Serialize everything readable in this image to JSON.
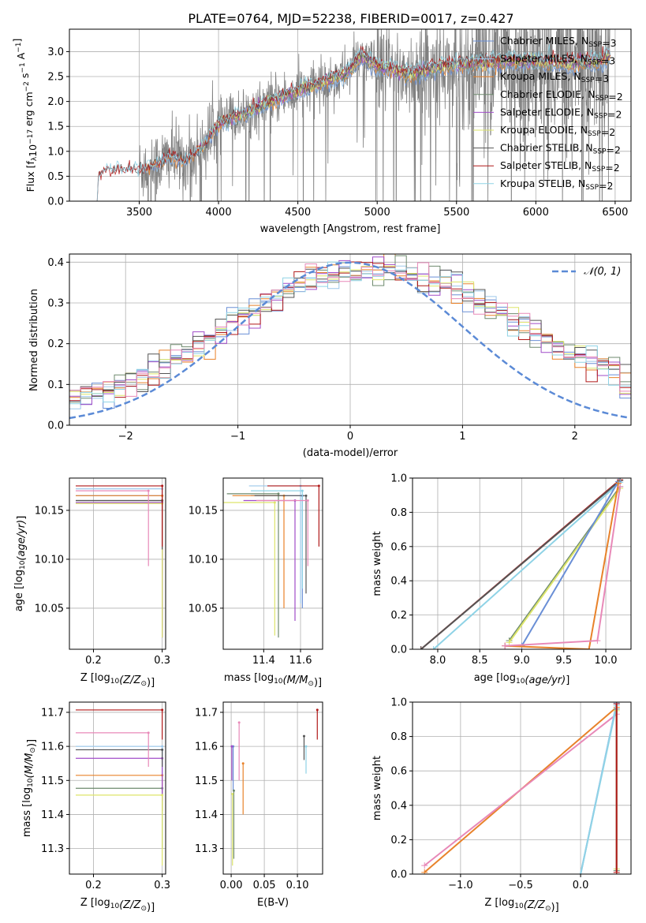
{
  "figure_title": "PLATE=0764, MJD=52238, FIBERID=0017, z=0.427",
  "colors": {
    "Chabrier MILES": "#6a8fd6",
    "Salpeter MILES": "#9ec8ea",
    "Kroupa MILES": "#e8822a",
    "Chabrier ELODIE": "#6e8a6e",
    "Salpeter ELODIE": "#a04cc8",
    "Kroupa ELODIE": "#dde56a",
    "Chabrier STELIB": "#555555",
    "Salpeter STELIB": "#b01818",
    "Kroupa STELIB": "#8fd3e6",
    "pink": "#e889b8",
    "data": "#808080",
    "gauss": "#5b8ad6"
  },
  "chart_data": [
    {
      "id": "spectrum",
      "type": "line",
      "xlabel": "wavelength [Angstrom, rest frame]",
      "ylabel": "Flux [f",
      "ylabel_sub": "λ",
      "ylabel_rest": "10",
      "ylabel_exp1": "−17",
      "ylabel_mid": " erg cm",
      "ylabel_exp2": "−2",
      "ylabel_s": " s",
      "ylabel_exp3": "−1",
      "ylabel_A": " A",
      "ylabel_exp4": "−1",
      "ylabel_end": "]",
      "xlim": [
        3060,
        6600
      ],
      "ylim": [
        0,
        3.45
      ],
      "xticks": [
        3500,
        4000,
        4500,
        5000,
        5500,
        6000,
        6500
      ],
      "yticks": [
        "0.0",
        "0.5",
        "1.0",
        "1.5",
        "2.0",
        "2.5",
        "3.0"
      ],
      "legend_placement": "right",
      "legend": [
        {
          "pre": "Chabrier MILES, N",
          "sub": "SSP",
          "post": "=3",
          "color": "#6a8fd6"
        },
        {
          "pre": "Salpeter MILES, N",
          "sub": "SSP",
          "post": "=3",
          "color": "#9ec8ea"
        },
        {
          "pre": "Kroupa MILES, N",
          "sub": "SSP",
          "post": "=3",
          "color": "#e8822a"
        },
        {
          "pre": "Chabrier ELODIE, N",
          "sub": "SSP",
          "post": "=2",
          "color": "#6e8a6e"
        },
        {
          "pre": "Salpeter ELODIE, N",
          "sub": "SSP",
          "post": "=2",
          "color": "#a04cc8"
        },
        {
          "pre": "Kroupa ELODIE, N",
          "sub": "SSP",
          "post": "=2",
          "color": "#dde56a"
        },
        {
          "pre": "Chabrier STELIB, N",
          "sub": "SSP",
          "post": "=2",
          "color": "#555555"
        },
        {
          "pre": "Salpeter STELIB, N",
          "sub": "SSP",
          "post": "=2",
          "color": "#b01818"
        },
        {
          "pre": "Kroupa STELIB, N",
          "sub": "SSP",
          "post": "=2",
          "color": "#8fd3e6"
        }
      ],
      "continuum_anchors": [
        [
          3235,
          0.0
        ],
        [
          3245,
          0.55
        ],
        [
          3300,
          0.62
        ],
        [
          3400,
          0.65
        ],
        [
          3500,
          0.63
        ],
        [
          3600,
          0.72
        ],
        [
          3700,
          0.9
        ],
        [
          3800,
          0.8
        ],
        [
          3900,
          1.1
        ],
        [
          4000,
          1.55
        ],
        [
          4200,
          1.8
        ],
        [
          4400,
          2.1
        ],
        [
          4600,
          2.3
        ],
        [
          4800,
          2.55
        ],
        [
          4900,
          2.9
        ],
        [
          5000,
          2.7
        ],
        [
          5200,
          2.55
        ],
        [
          5400,
          2.7
        ],
        [
          5600,
          2.75
        ],
        [
          5800,
          2.8
        ],
        [
          6000,
          2.8
        ],
        [
          6200,
          2.75
        ],
        [
          6400,
          2.8
        ],
        [
          6470,
          2.9
        ]
      ]
    },
    {
      "id": "residuals",
      "type": "step",
      "xlabel": "(data-model)/error",
      "ylabel": "Normed distribution",
      "xlim": [
        -2.5,
        2.5
      ],
      "ylim": [
        0,
        0.42
      ],
      "xticks": [
        "−2",
        "−1",
        "0",
        "1",
        "2"
      ],
      "yticks": [
        "0.0",
        "0.1",
        "0.2",
        "0.3",
        "0.4"
      ],
      "legend_placement": "top-right",
      "gauss_label": "𝒩(0, 1)",
      "bin_width": 0.1
    },
    {
      "id": "age-vs-Z",
      "type": "scatter",
      "xlabel": "Z [log",
      "xlabel_sub": "10",
      "xlabel_arg": "(Z/Z",
      "xlabel_sun": "⊙",
      "xlabel_end": ")]",
      "ylabel": "age  [log",
      "ylabel_sub": "10",
      "ylabel_arg": "(age/yr)",
      "ylabel_end": "]",
      "xlim": [
        0.165,
        0.305
      ],
      "ylim": [
        10.008,
        10.183
      ],
      "xticks": [
        "0.2",
        "0.3"
      ],
      "yticks": [
        "10.05",
        "10.10",
        "10.15"
      ],
      "points": [
        {
          "model": "Chabrier MILES",
          "x": 0.3,
          "y": 10.165,
          "ylo": 10.03
        },
        {
          "model": "Salpeter MILES",
          "x": 0.3,
          "y": 10.172,
          "ylo": 10.05
        },
        {
          "model": "Kroupa MILES",
          "x": 0.3,
          "y": 10.165,
          "ylo": 10.085
        },
        {
          "model": "Chabrier ELODIE",
          "x": 0.3,
          "y": 10.16,
          "ylo": 10.02
        },
        {
          "model": "Salpeter ELODIE",
          "x": 0.3,
          "y": 10.158,
          "ylo": 10.02
        },
        {
          "model": "Kroupa ELODIE",
          "x": 0.3,
          "y": 10.157,
          "ylo": 10.02
        },
        {
          "model": "Chabrier STELIB",
          "x": 0.3,
          "y": 10.16,
          "ylo": 10.11
        },
        {
          "model": "Salpeter STELIB",
          "x": 0.3,
          "y": 10.175,
          "ylo": 10.113
        },
        {
          "model": "pink",
          "x": 0.28,
          "y": 10.17,
          "ylo": 10.093
        }
      ]
    },
    {
      "id": "age-vs-mass",
      "type": "scatter",
      "xlabel": "mass [log",
      "xlabel_sub": "10",
      "xlabel_arg": "(M/M",
      "xlabel_sun": "⊙",
      "xlabel_end": ")]",
      "xlim": [
        11.18,
        11.72
      ],
      "ylim": [
        10.008,
        10.183
      ],
      "xticks": [
        "11.4",
        "11.6"
      ],
      "yticks": [
        "10.05",
        "10.10",
        "10.15"
      ],
      "points": [
        {
          "model": "Chabrier MILES",
          "x": 11.61,
          "y": 10.165,
          "ylo": 10.05
        },
        {
          "model": "Salpeter MILES",
          "x": 11.6,
          "y": 10.175,
          "ylo": 10.055
        },
        {
          "model": "Kroupa MILES",
          "x": 11.51,
          "y": 10.165,
          "ylo": 10.05
        },
        {
          "model": "Chabrier ELODIE",
          "x": 11.48,
          "y": 10.167,
          "ylo": 10.02
        },
        {
          "model": "Salpeter ELODIE",
          "x": 11.57,
          "y": 10.16,
          "ylo": 10.037
        },
        {
          "model": "Kroupa ELODIE",
          "x": 11.46,
          "y": 10.158,
          "ylo": 10.022
        },
        {
          "model": "Chabrier STELIB",
          "x": 11.63,
          "y": 10.165,
          "ylo": 10.065
        },
        {
          "model": "Salpeter STELIB",
          "x": 11.7,
          "y": 10.175,
          "ylo": 10.113
        },
        {
          "model": "Kroupa STELIB",
          "x": 11.61,
          "y": 10.17,
          "ylo": 10.07
        },
        {
          "model": "pink",
          "x": 11.64,
          "y": 10.16,
          "ylo": 10.093
        }
      ]
    },
    {
      "id": "weight-vs-age",
      "type": "line",
      "xlabel": "age  [log",
      "xlabel_sub": "10",
      "xlabel_arg": "(age/yr)",
      "xlabel_end": "]",
      "ylabel": "mass weight",
      "xlim": [
        7.7,
        10.3
      ],
      "ylim": [
        0,
        1
      ],
      "xticks": [
        "8.0",
        "8.5",
        "9.0",
        "9.5",
        "10.0"
      ],
      "yticks": [
        "0.0",
        "0.2",
        "0.4",
        "0.6",
        "0.8",
        "1.0"
      ],
      "series": [
        {
          "model": "Salpeter STELIB",
          "x": [
            7.8,
            10.17
          ],
          "y": [
            0.0,
            0.99
          ]
        },
        {
          "model": "Chabrier STELIB",
          "x": [
            7.8,
            10.17
          ],
          "y": [
            0.0,
            0.985
          ]
        },
        {
          "model": "Kroupa STELIB",
          "x": [
            7.95,
            10.17
          ],
          "y": [
            0.0,
            0.975
          ]
        },
        {
          "model": "Chabrier ELODIE",
          "x": [
            8.85,
            10.17
          ],
          "y": [
            0.05,
            0.95
          ]
        },
        {
          "model": "Kroupa ELODIE",
          "x": [
            8.85,
            10.17
          ],
          "y": [
            0.04,
            0.94
          ]
        },
        {
          "model": "Chabrier MILES",
          "x": [
            8.8,
            9.0,
            10.15
          ],
          "y": [
            0.02,
            0.02,
            0.98
          ]
        },
        {
          "model": "Kroupa MILES",
          "x": [
            8.8,
            9.8,
            10.15
          ],
          "y": [
            0.02,
            0.0,
            0.97
          ]
        },
        {
          "model": "pink",
          "x": [
            8.8,
            9.9,
            10.17
          ],
          "y": [
            0.02,
            0.05,
            0.95
          ]
        }
      ]
    },
    {
      "id": "mass-vs-Z",
      "type": "scatter",
      "xlabel": "Z [log",
      "xlabel_sub": "10",
      "xlabel_arg": "(Z/Z",
      "xlabel_sun": "⊙",
      "xlabel_end": ")]",
      "ylabel": "mass [log",
      "ylabel_sub": "10",
      "ylabel_arg": "(M/M",
      "ylabel_sun": "⊙",
      "ylabel_end": ")]",
      "xlim": [
        0.165,
        0.305
      ],
      "ylim": [
        11.225,
        11.73
      ],
      "xticks": [
        "0.2",
        "0.3"
      ],
      "yticks": [
        "11.3",
        "11.4",
        "11.5",
        "11.6",
        "11.7"
      ],
      "points": [
        {
          "model": "Chabrier MILES",
          "x": 0.3,
          "y": 11.59,
          "ylo": 11.48
        },
        {
          "model": "Salpeter MILES",
          "x": 0.3,
          "y": 11.6,
          "ylo": 11.52
        },
        {
          "model": "Kroupa MILES",
          "x": 0.3,
          "y": 11.515,
          "ylo": 11.41
        },
        {
          "model": "Chabrier ELODIE",
          "x": 0.3,
          "y": 11.477,
          "ylo": 11.3
        },
        {
          "model": "Salpeter ELODIE",
          "x": 0.3,
          "y": 11.565,
          "ylo": 11.44
        },
        {
          "model": "Kroupa ELODIE",
          "x": 0.3,
          "y": 11.457,
          "ylo": 11.25
        },
        {
          "model": "Chabrier STELIB",
          "x": 0.3,
          "y": 11.59,
          "ylo": 11.54
        },
        {
          "model": "Salpeter STELIB",
          "x": 0.3,
          "y": 11.707,
          "ylo": 11.62
        },
        {
          "model": "pink",
          "x": 0.28,
          "y": 11.64,
          "ylo": 11.54
        }
      ]
    },
    {
      "id": "mass-vs-EBV",
      "type": "scatter",
      "xlabel": "E(B-V)",
      "xlim": [
        -0.012,
        0.138
      ],
      "ylim": [
        11.225,
        11.73
      ],
      "xticks": [
        "0.00",
        "0.05",
        "0.10"
      ],
      "yticks": [
        "11.3",
        "11.4",
        "11.5",
        "11.6",
        "11.7"
      ],
      "points": [
        {
          "model": "Chabrier MILES",
          "y": 11.6,
          "x": 0.003,
          "ylo": 11.47
        },
        {
          "model": "Salpeter ELODIE",
          "y": 11.6,
          "x": 0.001,
          "ylo": 11.5
        },
        {
          "model": "Chabrier ELODIE",
          "y": 11.47,
          "x": 0.004,
          "ylo": 11.27
        },
        {
          "model": "Kroupa ELODIE",
          "y": 11.46,
          "x": 0.002,
          "ylo": 11.25
        },
        {
          "model": "pink",
          "y": 11.67,
          "x": 0.012,
          "ylo": 11.5
        },
        {
          "model": "Kroupa MILES",
          "y": 11.55,
          "x": 0.018,
          "ylo": 11.4
        },
        {
          "model": "Chabrier STELIB",
          "y": 11.63,
          "x": 0.11,
          "ylo": 11.56
        },
        {
          "model": "Kroupa STELIB",
          "y": 11.6,
          "x": 0.113,
          "ylo": 11.52
        },
        {
          "model": "Salpeter STELIB",
          "y": 11.707,
          "x": 0.13,
          "ylo": 11.62
        }
      ]
    },
    {
      "id": "weight-vs-Z",
      "type": "line",
      "xlabel": "Z [log",
      "xlabel_sub": "10",
      "xlabel_arg": "(Z/Z",
      "xlabel_sun": "⊙",
      "xlabel_end": ")]",
      "ylabel": "mass weight",
      "xlim": [
        -1.4,
        0.42
      ],
      "ylim": [
        0,
        1
      ],
      "xticks": [
        "−1.0",
        "−0.5",
        "0.0"
      ],
      "yticks": [
        "0.0",
        "0.2",
        "0.4",
        "0.6",
        "0.8",
        "1.0"
      ],
      "series": [
        {
          "model": "Kroupa MILES",
          "x": [
            -1.3,
            0.3
          ],
          "y": [
            0.01,
            0.97
          ]
        },
        {
          "model": "pink",
          "x": [
            -1.3,
            0.3
          ],
          "y": [
            0.05,
            0.93
          ]
        },
        {
          "model": "Chabrier MILES",
          "x": [
            0.0,
            0.3
          ],
          "y": [
            0.0,
            0.99
          ]
        },
        {
          "model": "Salpeter MILES",
          "x": [
            0.0,
            0.3
          ],
          "y": [
            0.0,
            0.995
          ]
        },
        {
          "model": "Kroupa STELIB",
          "x": [
            0.0,
            0.3
          ],
          "y": [
            0.0,
            0.98
          ]
        },
        {
          "model": "Kroupa ELODIE",
          "x": [
            0.3,
            0.3
          ],
          "y": [
            0.03,
            0.95
          ]
        },
        {
          "model": "Chabrier ELODIE",
          "x": [
            0.3,
            0.3
          ],
          "y": [
            0.02,
            0.96
          ]
        },
        {
          "model": "Salpeter STELIB",
          "x": [
            0.3,
            0.3
          ],
          "y": [
            0.01,
            0.99
          ]
        }
      ]
    }
  ]
}
